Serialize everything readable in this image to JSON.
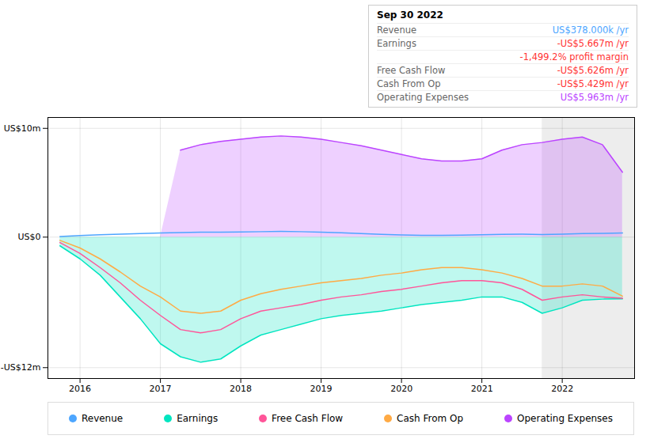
{
  "chart_data": {
    "type": "line",
    "x": [
      2015.75,
      2016.0,
      2016.25,
      2016.5,
      2016.75,
      2017.0,
      2017.25,
      2017.5,
      2017.75,
      2018.0,
      2018.25,
      2018.5,
      2018.75,
      2019.0,
      2019.25,
      2019.5,
      2019.75,
      2020.0,
      2020.25,
      2020.5,
      2020.75,
      2021.0,
      2021.25,
      2021.5,
      2021.75,
      2022.0,
      2022.25,
      2022.5,
      2022.75
    ],
    "xlim": [
      2015.6,
      2022.9
    ],
    "xticks": [
      2016,
      2017,
      2018,
      2019,
      2020,
      2021,
      2022
    ],
    "ylim": [
      -13,
      11
    ],
    "yticks": [
      {
        "value": 10,
        "label": "US$10m"
      },
      {
        "value": 0,
        "label": "US$0"
      },
      {
        "value": -12,
        "label": "-US$12m"
      }
    ],
    "grid": true,
    "legend": "bottom",
    "highlight": {
      "x1": 2021.75,
      "x2": 2022.9
    },
    "series": [
      {
        "name": "Revenue",
        "color": "#4da6ff",
        "type": "line",
        "values": [
          0.05,
          0.15,
          0.22,
          0.28,
          0.32,
          0.38,
          0.42,
          0.45,
          0.45,
          0.48,
          0.5,
          0.52,
          0.5,
          0.45,
          0.4,
          0.32,
          0.25,
          0.2,
          0.17,
          0.16,
          0.18,
          0.22,
          0.26,
          0.27,
          0.24,
          0.28,
          0.32,
          0.34,
          0.378
        ]
      },
      {
        "name": "Earnings",
        "color": "#00e5c0",
        "type": "area",
        "values": [
          -0.8,
          -2.0,
          -3.5,
          -5.5,
          -7.5,
          -9.8,
          -11.0,
          -11.5,
          -11.2,
          -10.0,
          -9.0,
          -8.5,
          -8.0,
          -7.5,
          -7.2,
          -7.0,
          -6.8,
          -6.5,
          -6.2,
          -6.0,
          -5.8,
          -5.5,
          -5.5,
          -6.0,
          -7.0,
          -6.5,
          -5.8,
          -5.7,
          -5.667
        ]
      },
      {
        "name": "Free Cash Flow",
        "color": "#ff5599",
        "type": "line",
        "values": [
          -0.5,
          -1.5,
          -2.8,
          -4.2,
          -5.8,
          -7.2,
          -8.5,
          -8.8,
          -8.5,
          -7.5,
          -6.8,
          -6.5,
          -6.2,
          -5.8,
          -5.5,
          -5.3,
          -5.0,
          -4.8,
          -4.5,
          -4.2,
          -4.0,
          -4.0,
          -4.2,
          -4.8,
          -5.8,
          -5.5,
          -5.3,
          -5.5,
          -5.626
        ]
      },
      {
        "name": "Cash From Op",
        "color": "#ffaa44",
        "type": "line",
        "values": [
          -0.3,
          -1.0,
          -2.0,
          -3.2,
          -4.5,
          -5.5,
          -6.8,
          -7.0,
          -6.8,
          -5.8,
          -5.2,
          -4.8,
          -4.5,
          -4.2,
          -4.0,
          -3.8,
          -3.5,
          -3.3,
          -3.0,
          -2.8,
          -2.8,
          -3.0,
          -3.3,
          -3.8,
          -4.5,
          -4.5,
          -4.3,
          -4.5,
          -5.429
        ]
      },
      {
        "name": "Operating Expenses",
        "color": "#bb44ff",
        "type": "area",
        "values": [
          null,
          null,
          null,
          null,
          null,
          null,
          8.0,
          8.5,
          8.8,
          9.0,
          9.2,
          9.3,
          9.2,
          9.0,
          8.7,
          8.4,
          8.0,
          7.6,
          7.2,
          7.0,
          7.0,
          7.2,
          8.0,
          8.5,
          8.7,
          9.0,
          9.2,
          8.5,
          5.963
        ]
      }
    ],
    "annotation": {
      "title": "Sep 30 2022",
      "rows": [
        {
          "label": "Revenue",
          "value": "US$378.000k /yr",
          "color": "#4da6ff"
        },
        {
          "label": "Earnings",
          "value": "-US$5.667m /yr",
          "color": "#ff3333"
        },
        {
          "value": "-1,499.2% profit margin",
          "color": "#ff3333"
        },
        {
          "label": "Free Cash Flow",
          "value": "-US$5.626m /yr",
          "color": "#ff3333"
        },
        {
          "label": "Cash From Op",
          "value": "-US$5.429m /yr",
          "color": "#ff3333"
        },
        {
          "label": "Operating Expenses",
          "value": "US$5.963m /yr",
          "color": "#bb44ff"
        }
      ]
    }
  }
}
